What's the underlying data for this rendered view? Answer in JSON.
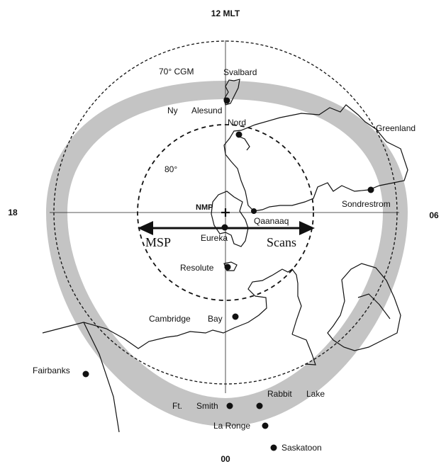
{
  "clock": {
    "top": "12 MLT",
    "left": "18",
    "right": "06",
    "bottom": "00"
  },
  "circles": {
    "outer": "70° CGM",
    "inner": "80°"
  },
  "pole": "NMP",
  "regions": {
    "svalbard": "Svalbard",
    "greenland": "Greenland"
  },
  "stations": {
    "ny": "Ny",
    "alesund": "Alesund",
    "nord": "Nord",
    "sondrestrom": "Sondrestrom",
    "qaanaaq": "Qaanaaq",
    "eureka": "Eureka",
    "resolute": "Resolute",
    "cambridge": "Cambridge",
    "bay": "Bay",
    "fairbanks": "Fairbanks",
    "ft": "Ft.",
    "smith": "Smith",
    "rabbit": "Rabbit",
    "lake": "Lake",
    "laronge": "La Ronge",
    "saskatoon": "Saskatoon"
  },
  "scan": {
    "left": "MSP",
    "right": "Scans"
  },
  "colors": {
    "oval": "#c4c4c4",
    "ink": "#111111"
  }
}
